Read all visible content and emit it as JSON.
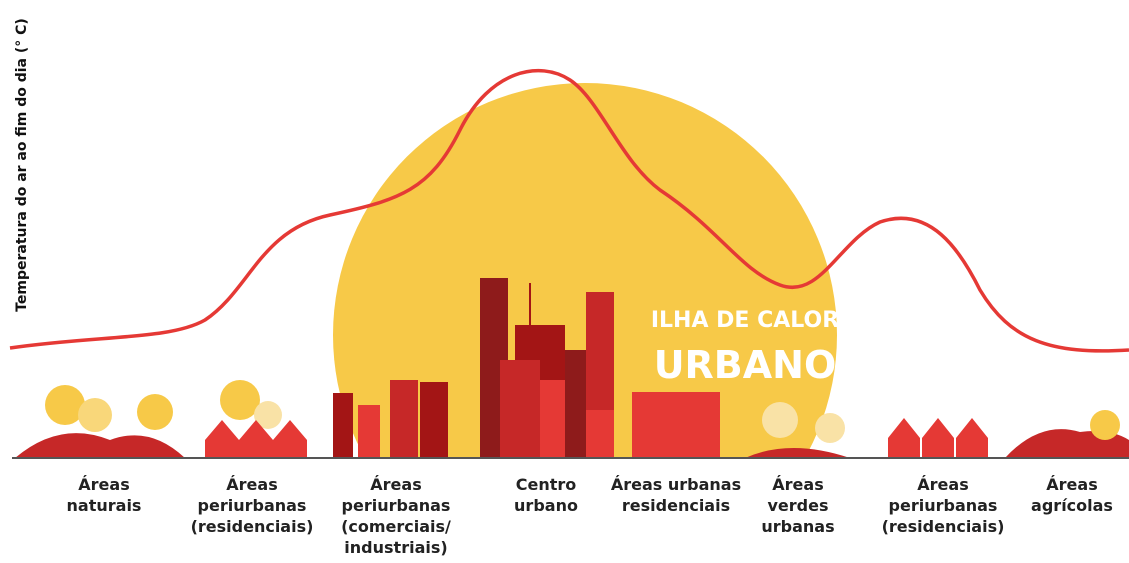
{
  "axis_label": "Temperatura do ar ao fim do dia (° C)",
  "banner": {
    "line1": "ILHA DE CALOR",
    "line2": "URBANO"
  },
  "zones": [
    {
      "lines": [
        "Áreas",
        "naturais"
      ]
    },
    {
      "lines": [
        "Áreas",
        "periurbanas",
        "(residenciais)"
      ]
    },
    {
      "lines": [
        "Áreas",
        "periurbanas",
        "(comerciais/",
        "industriais)"
      ]
    },
    {
      "lines": [
        "Centro",
        "urbano"
      ]
    },
    {
      "lines": [
        "Áreas urbanas",
        "residenciais"
      ]
    },
    {
      "lines": [
        "Áreas",
        "verdes",
        "urbanas"
      ]
    },
    {
      "lines": [
        "Áreas",
        "periurbanas",
        "(residenciais)"
      ]
    },
    {
      "lines": [
        "Áreas",
        "agrícolas"
      ]
    }
  ]
}
